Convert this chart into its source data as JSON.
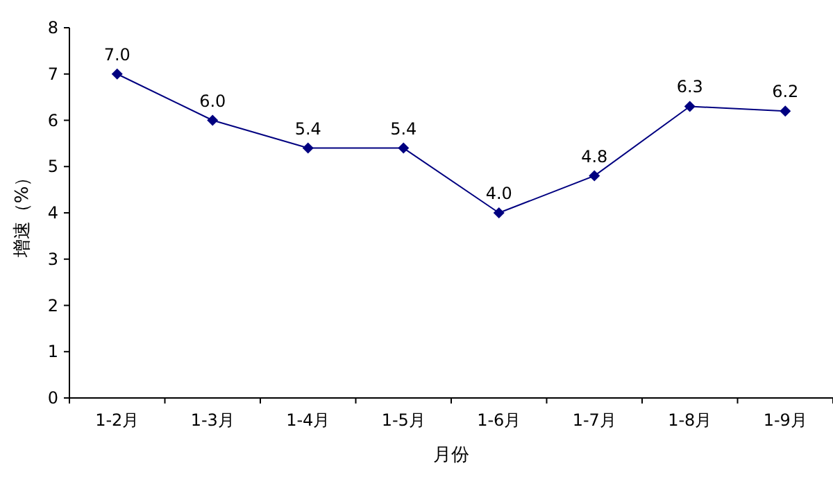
{
  "chart_data": {
    "type": "line",
    "xlabel": "月份",
    "ylabel": "增速（%）",
    "categories": [
      "1-2月",
      "1-3月",
      "1-4月",
      "1-5月",
      "1-6月",
      "1-7月",
      "1-8月",
      "1-9月"
    ],
    "series": [
      {
        "color": "#000080",
        "values": [
          7.0,
          6.0,
          5.4,
          5.4,
          4.0,
          4.8,
          6.3,
          6.2
        ],
        "value_labels": [
          "7.0",
          "6.0",
          "5.4",
          "5.4",
          "4.0",
          "4.8",
          "6.3",
          "6.2"
        ]
      }
    ],
    "ylim": [
      0,
      8
    ],
    "yticks": [
      0,
      1,
      2,
      3,
      4,
      5,
      6,
      7,
      8
    ],
    "marker": "diamond"
  }
}
